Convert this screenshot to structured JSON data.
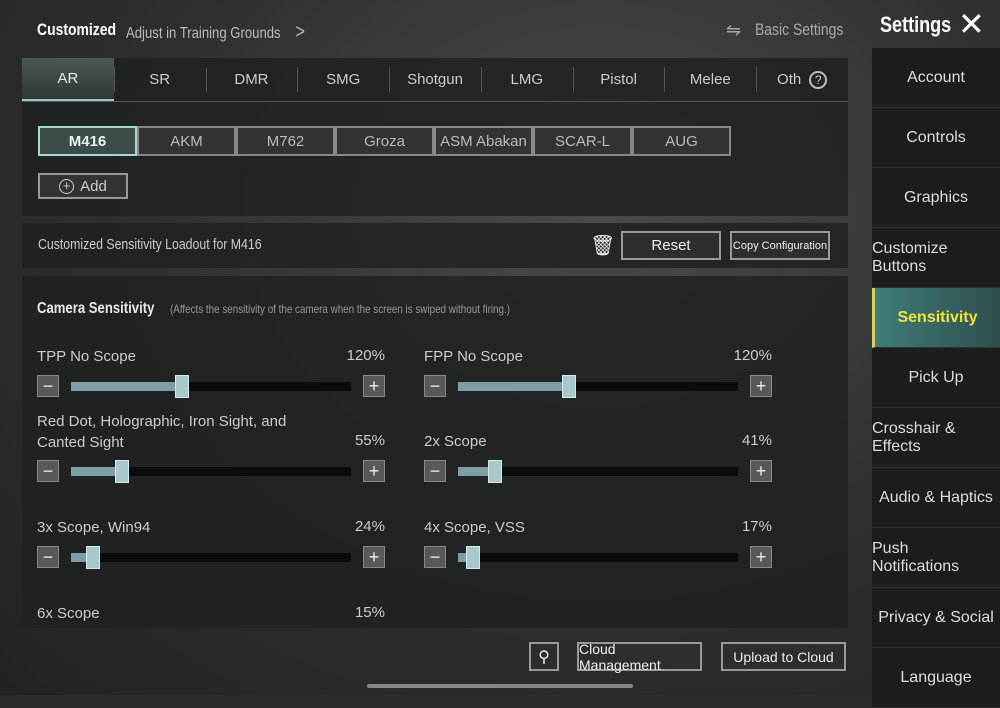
{
  "header": {
    "mode": "Customized",
    "training_link": "Adjust in Training Grounds",
    "basic_settings": "Basic Settings",
    "title": "Settings"
  },
  "weapon_classes": [
    {
      "label": "AR",
      "active": true
    },
    {
      "label": "SR"
    },
    {
      "label": "DMR"
    },
    {
      "label": "SMG"
    },
    {
      "label": "Shotgun"
    },
    {
      "label": "LMG"
    },
    {
      "label": "Pistol"
    },
    {
      "label": "Melee"
    },
    {
      "label": "Oth"
    }
  ],
  "weapons": [
    {
      "label": "M416",
      "active": true
    },
    {
      "label": "AKM"
    },
    {
      "label": "M762"
    },
    {
      "label": "Groza"
    },
    {
      "label": "ASM Abakan"
    },
    {
      "label": "SCAR-L"
    },
    {
      "label": "AUG"
    }
  ],
  "add_label": "Add",
  "loadout": {
    "title": "Customized Sensitivity Loadout for M416",
    "reset": "Reset",
    "copy": "Copy Configuration"
  },
  "camera": {
    "title": "Camera Sensitivity",
    "note": "(Affects the sensitivity of the camera when the screen is swiped without firing.)",
    "sliders": [
      {
        "label": "TPP No Scope",
        "value": "120%",
        "level": 120
      },
      {
        "label": "FPP No Scope",
        "value": "120%",
        "level": 120
      },
      {
        "label": "Red Dot, Holographic, Iron Sight, and Canted Sight",
        "value": "55%",
        "level": 55
      },
      {
        "label": "2x Scope",
        "value": "41%",
        "level": 41
      },
      {
        "label": "3x Scope, Win94",
        "value": "24%",
        "level": 24
      },
      {
        "label": "4x Scope, VSS",
        "value": "17%",
        "level": 17
      },
      {
        "label": "6x Scope",
        "value": "15%",
        "level": 15
      }
    ],
    "slider_range": [
      1,
      300
    ]
  },
  "footer": {
    "cloud_management": "Cloud Management",
    "upload": "Upload to Cloud"
  },
  "sidebar": {
    "items": [
      {
        "label": "Account"
      },
      {
        "label": "Controls"
      },
      {
        "label": "Graphics"
      },
      {
        "label": "Customize Buttons"
      },
      {
        "label": "Sensitivity",
        "active": true
      },
      {
        "label": "Pick Up"
      },
      {
        "label": "Crosshair & Effects"
      },
      {
        "label": "Audio & Haptics"
      },
      {
        "label": "Push Notifications"
      },
      {
        "label": "Privacy & Social"
      },
      {
        "label": "Language"
      }
    ]
  },
  "colors": {
    "accent": "#a9d6d4",
    "active_sidebar_text": "#f3e23a"
  }
}
